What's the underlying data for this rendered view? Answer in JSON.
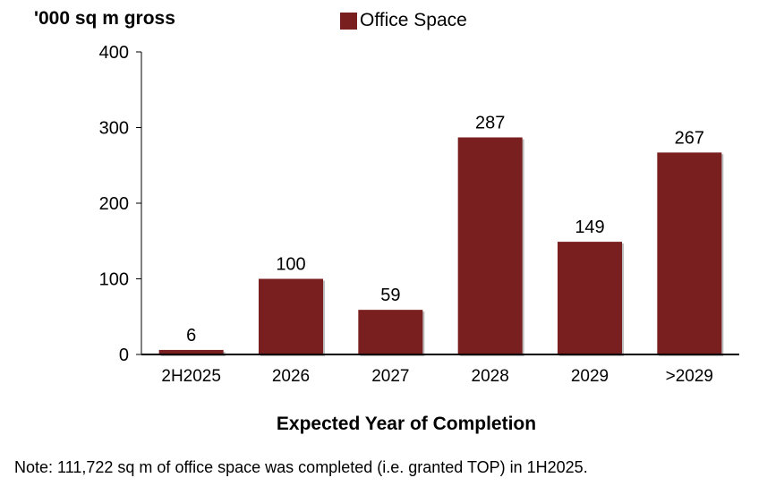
{
  "chart_data": {
    "type": "bar",
    "title": "",
    "ylabel": "'000 sq m gross",
    "xlabel": "Expected Year of Completion",
    "ylim": [
      0,
      400
    ],
    "yticks": [
      0,
      100,
      200,
      300,
      400
    ],
    "categories": [
      "2H2025",
      "2026",
      "2027",
      "2028",
      "2029",
      ">2029"
    ],
    "series": [
      {
        "name": "Office Space",
        "values": [
          6,
          100,
          59,
          287,
          149,
          267
        ]
      }
    ],
    "data_labels": [
      "6",
      "100",
      "59",
      "287",
      "149",
      "267"
    ],
    "legend": "top-center",
    "grid": false,
    "colors": {
      "bar": "#7a1f1f",
      "axis": "#000000"
    }
  },
  "note": "Note: 111,722 sq m of office space was completed (i.e. granted TOP) in 1H2025."
}
